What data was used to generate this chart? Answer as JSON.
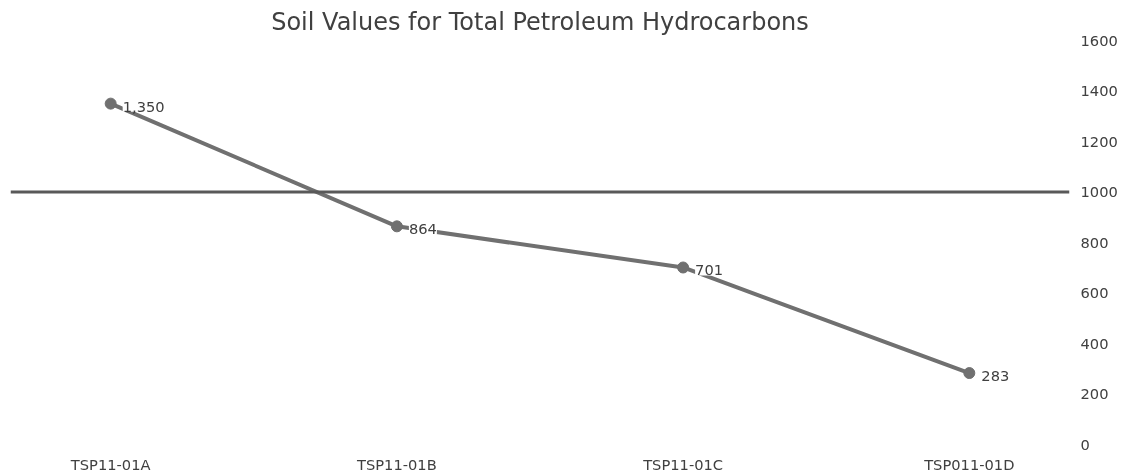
{
  "chart_data": {
    "type": "line",
    "title": "Soil Values for Total Petroleum Hydrocarbons",
    "categories": [
      "TSP11-01A",
      "TSP11-01B",
      "TSP11-01C",
      "TSP011-01D"
    ],
    "series": [
      {
        "color": "#707070",
        "values": [
          1350,
          864,
          701,
          283
        ],
        "value_labels": [
          "1,350",
          "864",
          "701",
          "283"
        ]
      }
    ],
    "ylim": [
      0,
      1600
    ],
    "yticks": [
      0,
      200,
      400,
      600,
      800,
      1000,
      1200,
      1400,
      1600
    ],
    "ref_lines": [
      {
        "axis": "y",
        "value": 1000,
        "color": "#595959",
        "line_style": "solid"
      }
    ],
    "marker": "circle",
    "line_style": "solid",
    "grid": false
  }
}
